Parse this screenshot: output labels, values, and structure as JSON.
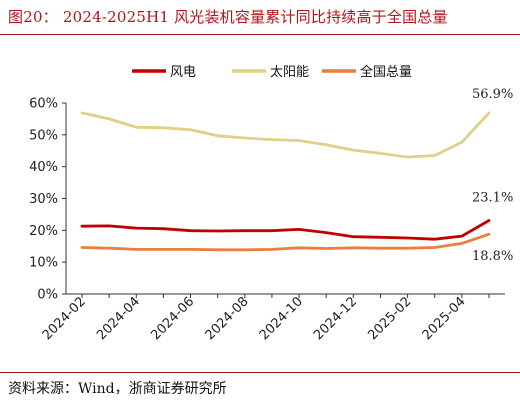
{
  "header": {
    "title": "图20： 2024-2025H1 风光装机容量累计同比持续高于全国总量"
  },
  "footer": {
    "source": "资料来源：Wind，浙商证券研究所"
  },
  "chart_data": {
    "type": "line",
    "title": "图20： 2024-2025H1 风光装机容量累计同比持续高于全国总量",
    "xlabel": "",
    "ylabel": "",
    "x": [
      "2024-02",
      "2024-03",
      "2024-04",
      "2024-05",
      "2024-06",
      "2024-07",
      "2024-08",
      "2024-09",
      "2024-10",
      "2024-11",
      "2024-12",
      "2025-01",
      "2025-02",
      "2025-03",
      "2025-04",
      "2025-05"
    ],
    "x_tick_labels": [
      "2024-02",
      "2024-04",
      "2024-06",
      "2024-08",
      "2024-10",
      "2024-12",
      "2025-02",
      "2025-04"
    ],
    "ylim": [
      0,
      60
    ],
    "y_ticks": [
      0,
      10,
      20,
      30,
      40,
      50,
      60
    ],
    "y_tick_labels": [
      "0%",
      "10%",
      "20%",
      "30%",
      "40%",
      "50%",
      "60%"
    ],
    "grid": false,
    "legend_position": "top-center",
    "series": [
      {
        "name": "风电",
        "color": "#c00000",
        "values": [
          21.3,
          21.4,
          20.7,
          20.5,
          19.9,
          19.8,
          19.9,
          19.9,
          20.3,
          19.3,
          18.0,
          17.8,
          17.6,
          17.2,
          18.2,
          23.1
        ]
      },
      {
        "name": "太阳能",
        "color": "#e2cf86",
        "values": [
          56.9,
          55.0,
          52.4,
          52.2,
          51.6,
          49.7,
          49.0,
          48.5,
          48.2,
          46.9,
          45.2,
          44.2,
          43.0,
          43.5,
          47.7,
          56.9
        ]
      },
      {
        "name": "全国总量",
        "color": "#ec7d3f",
        "values": [
          14.6,
          14.4,
          14.0,
          14.0,
          14.0,
          13.9,
          13.9,
          14.0,
          14.5,
          14.3,
          14.5,
          14.4,
          14.4,
          14.6,
          15.9,
          18.8
        ]
      }
    ],
    "annotations": [
      "56.9%",
      "23.1%",
      "18.8%"
    ]
  }
}
